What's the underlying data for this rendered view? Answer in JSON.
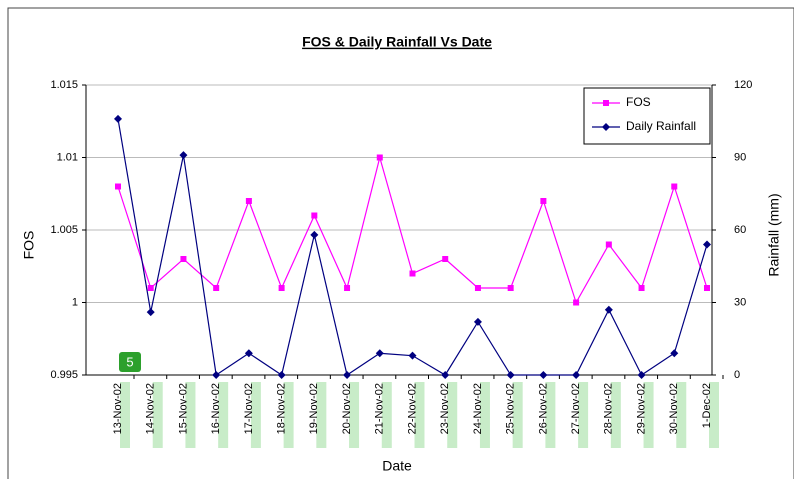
{
  "chart_data": {
    "type": "line",
    "title": "FOS & Daily Rainfall Vs Date",
    "x_label": "Date",
    "y_label": "FOS",
    "y2_label": "Rainfall (mm)",
    "categories": [
      "13-Nov-02",
      "14-Nov-02",
      "15-Nov-02",
      "16-Nov-02",
      "17-Nov-02",
      "18-Nov-02",
      "19-Nov-02",
      "20-Nov-02",
      "21-Nov-02",
      "22-Nov-02",
      "23-Nov-02",
      "24-Nov-02",
      "25-Nov-02",
      "26-Nov-02",
      "27-Nov-02",
      "28-Nov-02",
      "29-Nov-02",
      "30-Nov-02",
      "1-Dec-02"
    ],
    "series": [
      {
        "name": "FOS",
        "color": "#ff00ff",
        "marker": "square",
        "values": [
          1.008,
          1.001,
          1.003,
          1.001,
          1.007,
          1.001,
          1.006,
          1.001,
          1.01,
          1.002,
          1.003,
          1.001,
          1.001,
          1.007,
          1.0,
          1.004,
          1.001,
          1.008,
          1.001
        ]
      },
      {
        "name": "Daily Rainfall",
        "color": "#000080",
        "marker": "diamond",
        "axis": "y2",
        "values": [
          106,
          26,
          91,
          0,
          9,
          0,
          58,
          0,
          9,
          8,
          0,
          22,
          0,
          0,
          0,
          27,
          0,
          9,
          54
        ]
      }
    ],
    "ylim": [
      0.995,
      1.015
    ],
    "yticks": [
      0.995,
      1,
      1.005,
      1.01,
      1.015
    ],
    "y2lim": [
      0,
      120
    ],
    "y2ticks": [
      0,
      30,
      60,
      90,
      120
    ],
    "grid": true,
    "legend": "top-right",
    "badge": "5"
  }
}
